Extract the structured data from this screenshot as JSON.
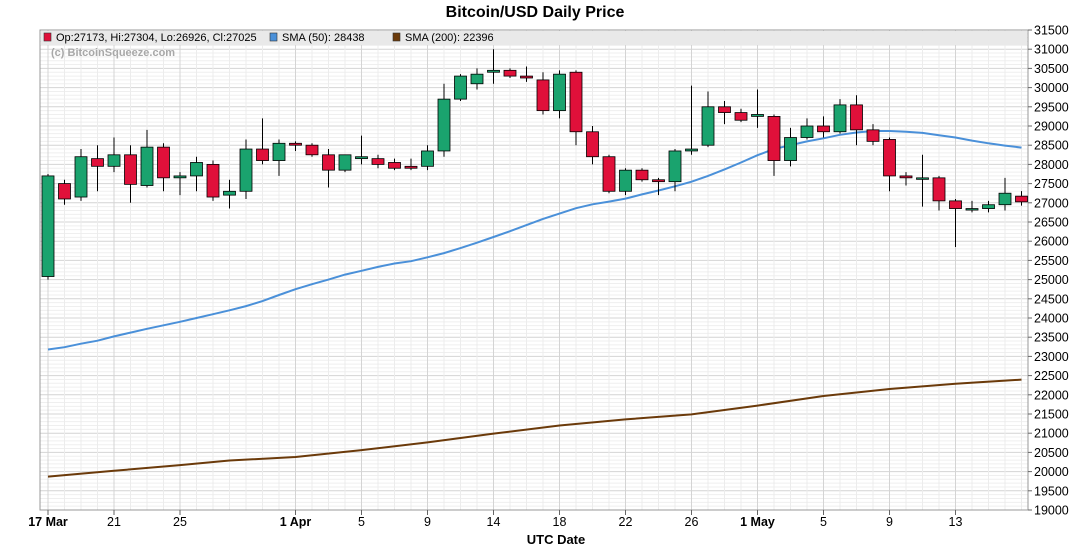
{
  "chart_data": {
    "type": "candlestick",
    "title": "Bitcoin/USD Daily Price",
    "xlabel": "UTC Date",
    "ylabel": "",
    "ylim": [
      19000,
      31500
    ],
    "y_ticks": [
      19000,
      19500,
      20000,
      20500,
      21000,
      21500,
      22000,
      22500,
      23000,
      23500,
      24000,
      24500,
      25000,
      25500,
      26000,
      26500,
      27000,
      27500,
      28000,
      28500,
      29000,
      29500,
      30000,
      30500,
      31000,
      31500
    ],
    "x_ticks": [
      {
        "day": 0,
        "label": "17 Mar",
        "bold": true
      },
      {
        "day": 4,
        "label": "21",
        "bold": false
      },
      {
        "day": 8,
        "label": "25",
        "bold": false
      },
      {
        "day": 15,
        "label": "1 Apr",
        "bold": true
      },
      {
        "day": 19,
        "label": "5",
        "bold": false
      },
      {
        "day": 23,
        "label": "9",
        "bold": false
      },
      {
        "day": 27,
        "label": "14",
        "bold": false
      },
      {
        "day": 31,
        "label": "18",
        "bold": false
      },
      {
        "day": 35,
        "label": "22",
        "bold": false
      },
      {
        "day": 39,
        "label": "26",
        "bold": false
      },
      {
        "day": 43,
        "label": "1 May",
        "bold": true
      },
      {
        "day": 47,
        "label": "5",
        "bold": false
      },
      {
        "day": 51,
        "label": "9",
        "bold": false
      },
      {
        "day": 55,
        "label": "13",
        "bold": false
      }
    ],
    "grid": true,
    "legend": {
      "placement": "top-left",
      "items": [
        {
          "label": "Op:27173, Hi:27304, Lo:26926, Cl:27025",
          "color": "#e0103a"
        },
        {
          "label": "SMA (50): 28438",
          "color": "#4a90d9"
        },
        {
          "label": "SMA (200): 22396",
          "color": "#6b3a0a"
        }
      ],
      "watermark": "(c) BitcoinSqueeze.com"
    },
    "colors": {
      "up": "#1aa36e",
      "down": "#e0103a",
      "sma50": "#4a90d9",
      "sma200": "#6b3a0a"
    },
    "candles": [
      {
        "o": 25080,
        "h": 27750,
        "l": 25000,
        "c": 27700
      },
      {
        "o": 27500,
        "h": 27600,
        "l": 26950,
        "c": 27100
      },
      {
        "o": 27150,
        "h": 28400,
        "l": 27050,
        "c": 28200
      },
      {
        "o": 28150,
        "h": 28500,
        "l": 27300,
        "c": 27950
      },
      {
        "o": 27950,
        "h": 28700,
        "l": 27800,
        "c": 28250
      },
      {
        "o": 28250,
        "h": 28500,
        "l": 27000,
        "c": 27480
      },
      {
        "o": 27450,
        "h": 28900,
        "l": 27400,
        "c": 28450
      },
      {
        "o": 28450,
        "h": 28550,
        "l": 27300,
        "c": 27650
      },
      {
        "o": 27650,
        "h": 27800,
        "l": 27200,
        "c": 27700
      },
      {
        "o": 27700,
        "h": 28200,
        "l": 27300,
        "c": 28050
      },
      {
        "o": 28000,
        "h": 28100,
        "l": 27050,
        "c": 27150
      },
      {
        "o": 27200,
        "h": 27600,
        "l": 26850,
        "c": 27300
      },
      {
        "o": 27300,
        "h": 28650,
        "l": 27100,
        "c": 28400
      },
      {
        "o": 28400,
        "h": 29200,
        "l": 28000,
        "c": 28100
      },
      {
        "o": 28100,
        "h": 28650,
        "l": 27700,
        "c": 28550
      },
      {
        "o": 28550,
        "h": 28600,
        "l": 28350,
        "c": 28500
      },
      {
        "o": 28500,
        "h": 28550,
        "l": 28200,
        "c": 28250
      },
      {
        "o": 28250,
        "h": 28400,
        "l": 27400,
        "c": 27850
      },
      {
        "o": 27850,
        "h": 28250,
        "l": 27800,
        "c": 28250
      },
      {
        "o": 28150,
        "h": 28750,
        "l": 28000,
        "c": 28200
      },
      {
        "o": 28150,
        "h": 28250,
        "l": 27900,
        "c": 28000
      },
      {
        "o": 28050,
        "h": 28150,
        "l": 27850,
        "c": 27900
      },
      {
        "o": 27950,
        "h": 28150,
        "l": 27850,
        "c": 27900
      },
      {
        "o": 27950,
        "h": 28500,
        "l": 27850,
        "c": 28350
      },
      {
        "o": 28350,
        "h": 30100,
        "l": 28200,
        "c": 29700
      },
      {
        "o": 29700,
        "h": 30350,
        "l": 29650,
        "c": 30300
      },
      {
        "o": 30100,
        "h": 30500,
        "l": 29950,
        "c": 30350
      },
      {
        "o": 30400,
        "h": 31000,
        "l": 30100,
        "c": 30450
      },
      {
        "o": 30450,
        "h": 30500,
        "l": 30250,
        "c": 30300
      },
      {
        "o": 30300,
        "h": 30550,
        "l": 30150,
        "c": 30250
      },
      {
        "o": 30200,
        "h": 30400,
        "l": 29300,
        "c": 29400
      },
      {
        "o": 29400,
        "h": 30450,
        "l": 29200,
        "c": 30350
      },
      {
        "o": 30400,
        "h": 30450,
        "l": 28500,
        "c": 28850
      },
      {
        "o": 28850,
        "h": 29000,
        "l": 28000,
        "c": 28200
      },
      {
        "o": 28200,
        "h": 28250,
        "l": 27250,
        "c": 27300
      },
      {
        "o": 27300,
        "h": 27900,
        "l": 27200,
        "c": 27850
      },
      {
        "o": 27850,
        "h": 27900,
        "l": 27550,
        "c": 27600
      },
      {
        "o": 27600,
        "h": 27650,
        "l": 27200,
        "c": 27550
      },
      {
        "o": 27550,
        "h": 28400,
        "l": 27300,
        "c": 28350
      },
      {
        "o": 28350,
        "h": 30050,
        "l": 28250,
        "c": 28400
      },
      {
        "o": 28500,
        "h": 29900,
        "l": 28450,
        "c": 29500
      },
      {
        "o": 29500,
        "h": 29650,
        "l": 29050,
        "c": 29350
      },
      {
        "o": 29350,
        "h": 29450,
        "l": 29100,
        "c": 29150
      },
      {
        "o": 29250,
        "h": 29950,
        "l": 28950,
        "c": 29300
      },
      {
        "o": 29250,
        "h": 29300,
        "l": 27700,
        "c": 28100
      },
      {
        "o": 28100,
        "h": 28950,
        "l": 27950,
        "c": 28700
      },
      {
        "o": 28700,
        "h": 29200,
        "l": 28650,
        "c": 29000
      },
      {
        "o": 29000,
        "h": 29250,
        "l": 28700,
        "c": 28850
      },
      {
        "o": 28850,
        "h": 29700,
        "l": 28800,
        "c": 29550
      },
      {
        "o": 29550,
        "h": 29800,
        "l": 28500,
        "c": 28900
      },
      {
        "o": 28900,
        "h": 29050,
        "l": 28500,
        "c": 28600
      },
      {
        "o": 28650,
        "h": 28700,
        "l": 27300,
        "c": 27700
      },
      {
        "o": 27700,
        "h": 27800,
        "l": 27450,
        "c": 27650
      },
      {
        "o": 27650,
        "h": 28250,
        "l": 26900,
        "c": 27650
      },
      {
        "o": 27650,
        "h": 27700,
        "l": 26800,
        "c": 27050
      },
      {
        "o": 27050,
        "h": 27100,
        "l": 25850,
        "c": 26850
      },
      {
        "o": 26850,
        "h": 27050,
        "l": 26750,
        "c": 26850
      },
      {
        "o": 26850,
        "h": 27050,
        "l": 26750,
        "c": 26950
      },
      {
        "o": 26950,
        "h": 27650,
        "l": 26800,
        "c": 27250
      },
      {
        "o": 27173,
        "h": 27304,
        "l": 26926,
        "c": 27025
      }
    ],
    "series": [
      {
        "name": "SMA (50)",
        "color": "#4a90d9",
        "values": [
          [
            0,
            23180
          ],
          [
            1,
            23240
          ],
          [
            2,
            23330
          ],
          [
            3,
            23410
          ],
          [
            4,
            23520
          ],
          [
            5,
            23620
          ],
          [
            6,
            23720
          ],
          [
            7,
            23810
          ],
          [
            8,
            23900
          ],
          [
            9,
            24000
          ],
          [
            10,
            24100
          ],
          [
            11,
            24200
          ],
          [
            12,
            24310
          ],
          [
            13,
            24440
          ],
          [
            14,
            24600
          ],
          [
            15,
            24750
          ],
          [
            16,
            24880
          ],
          [
            17,
            25000
          ],
          [
            18,
            25130
          ],
          [
            19,
            25230
          ],
          [
            20,
            25330
          ],
          [
            21,
            25420
          ],
          [
            22,
            25480
          ],
          [
            23,
            25580
          ],
          [
            24,
            25690
          ],
          [
            25,
            25820
          ],
          [
            26,
            25960
          ],
          [
            27,
            26110
          ],
          [
            28,
            26260
          ],
          [
            29,
            26420
          ],
          [
            30,
            26580
          ],
          [
            31,
            26720
          ],
          [
            32,
            26860
          ],
          [
            33,
            26960
          ],
          [
            34,
            27030
          ],
          [
            35,
            27110
          ],
          [
            36,
            27220
          ],
          [
            37,
            27320
          ],
          [
            38,
            27430
          ],
          [
            39,
            27550
          ],
          [
            40,
            27700
          ],
          [
            41,
            27870
          ],
          [
            42,
            28050
          ],
          [
            43,
            28240
          ],
          [
            44,
            28400
          ],
          [
            45,
            28500
          ],
          [
            46,
            28600
          ],
          [
            47,
            28680
          ],
          [
            48,
            28770
          ],
          [
            49,
            28830
          ],
          [
            50,
            28870
          ],
          [
            51,
            28870
          ],
          [
            52,
            28850
          ],
          [
            53,
            28820
          ],
          [
            54,
            28760
          ],
          [
            55,
            28700
          ],
          [
            56,
            28620
          ],
          [
            57,
            28550
          ],
          [
            58,
            28490
          ],
          [
            59,
            28438
          ]
        ]
      },
      {
        "name": "SMA (200)",
        "color": "#6b3a0a",
        "values": [
          [
            0,
            19870
          ],
          [
            4,
            20020
          ],
          [
            8,
            20170
          ],
          [
            11,
            20290
          ],
          [
            15,
            20380
          ],
          [
            19,
            20560
          ],
          [
            23,
            20760
          ],
          [
            27,
            20990
          ],
          [
            31,
            21200
          ],
          [
            35,
            21360
          ],
          [
            39,
            21490
          ],
          [
            43,
            21720
          ],
          [
            47,
            21970
          ],
          [
            51,
            22150
          ],
          [
            55,
            22290
          ],
          [
            59,
            22396
          ]
        ]
      }
    ]
  }
}
